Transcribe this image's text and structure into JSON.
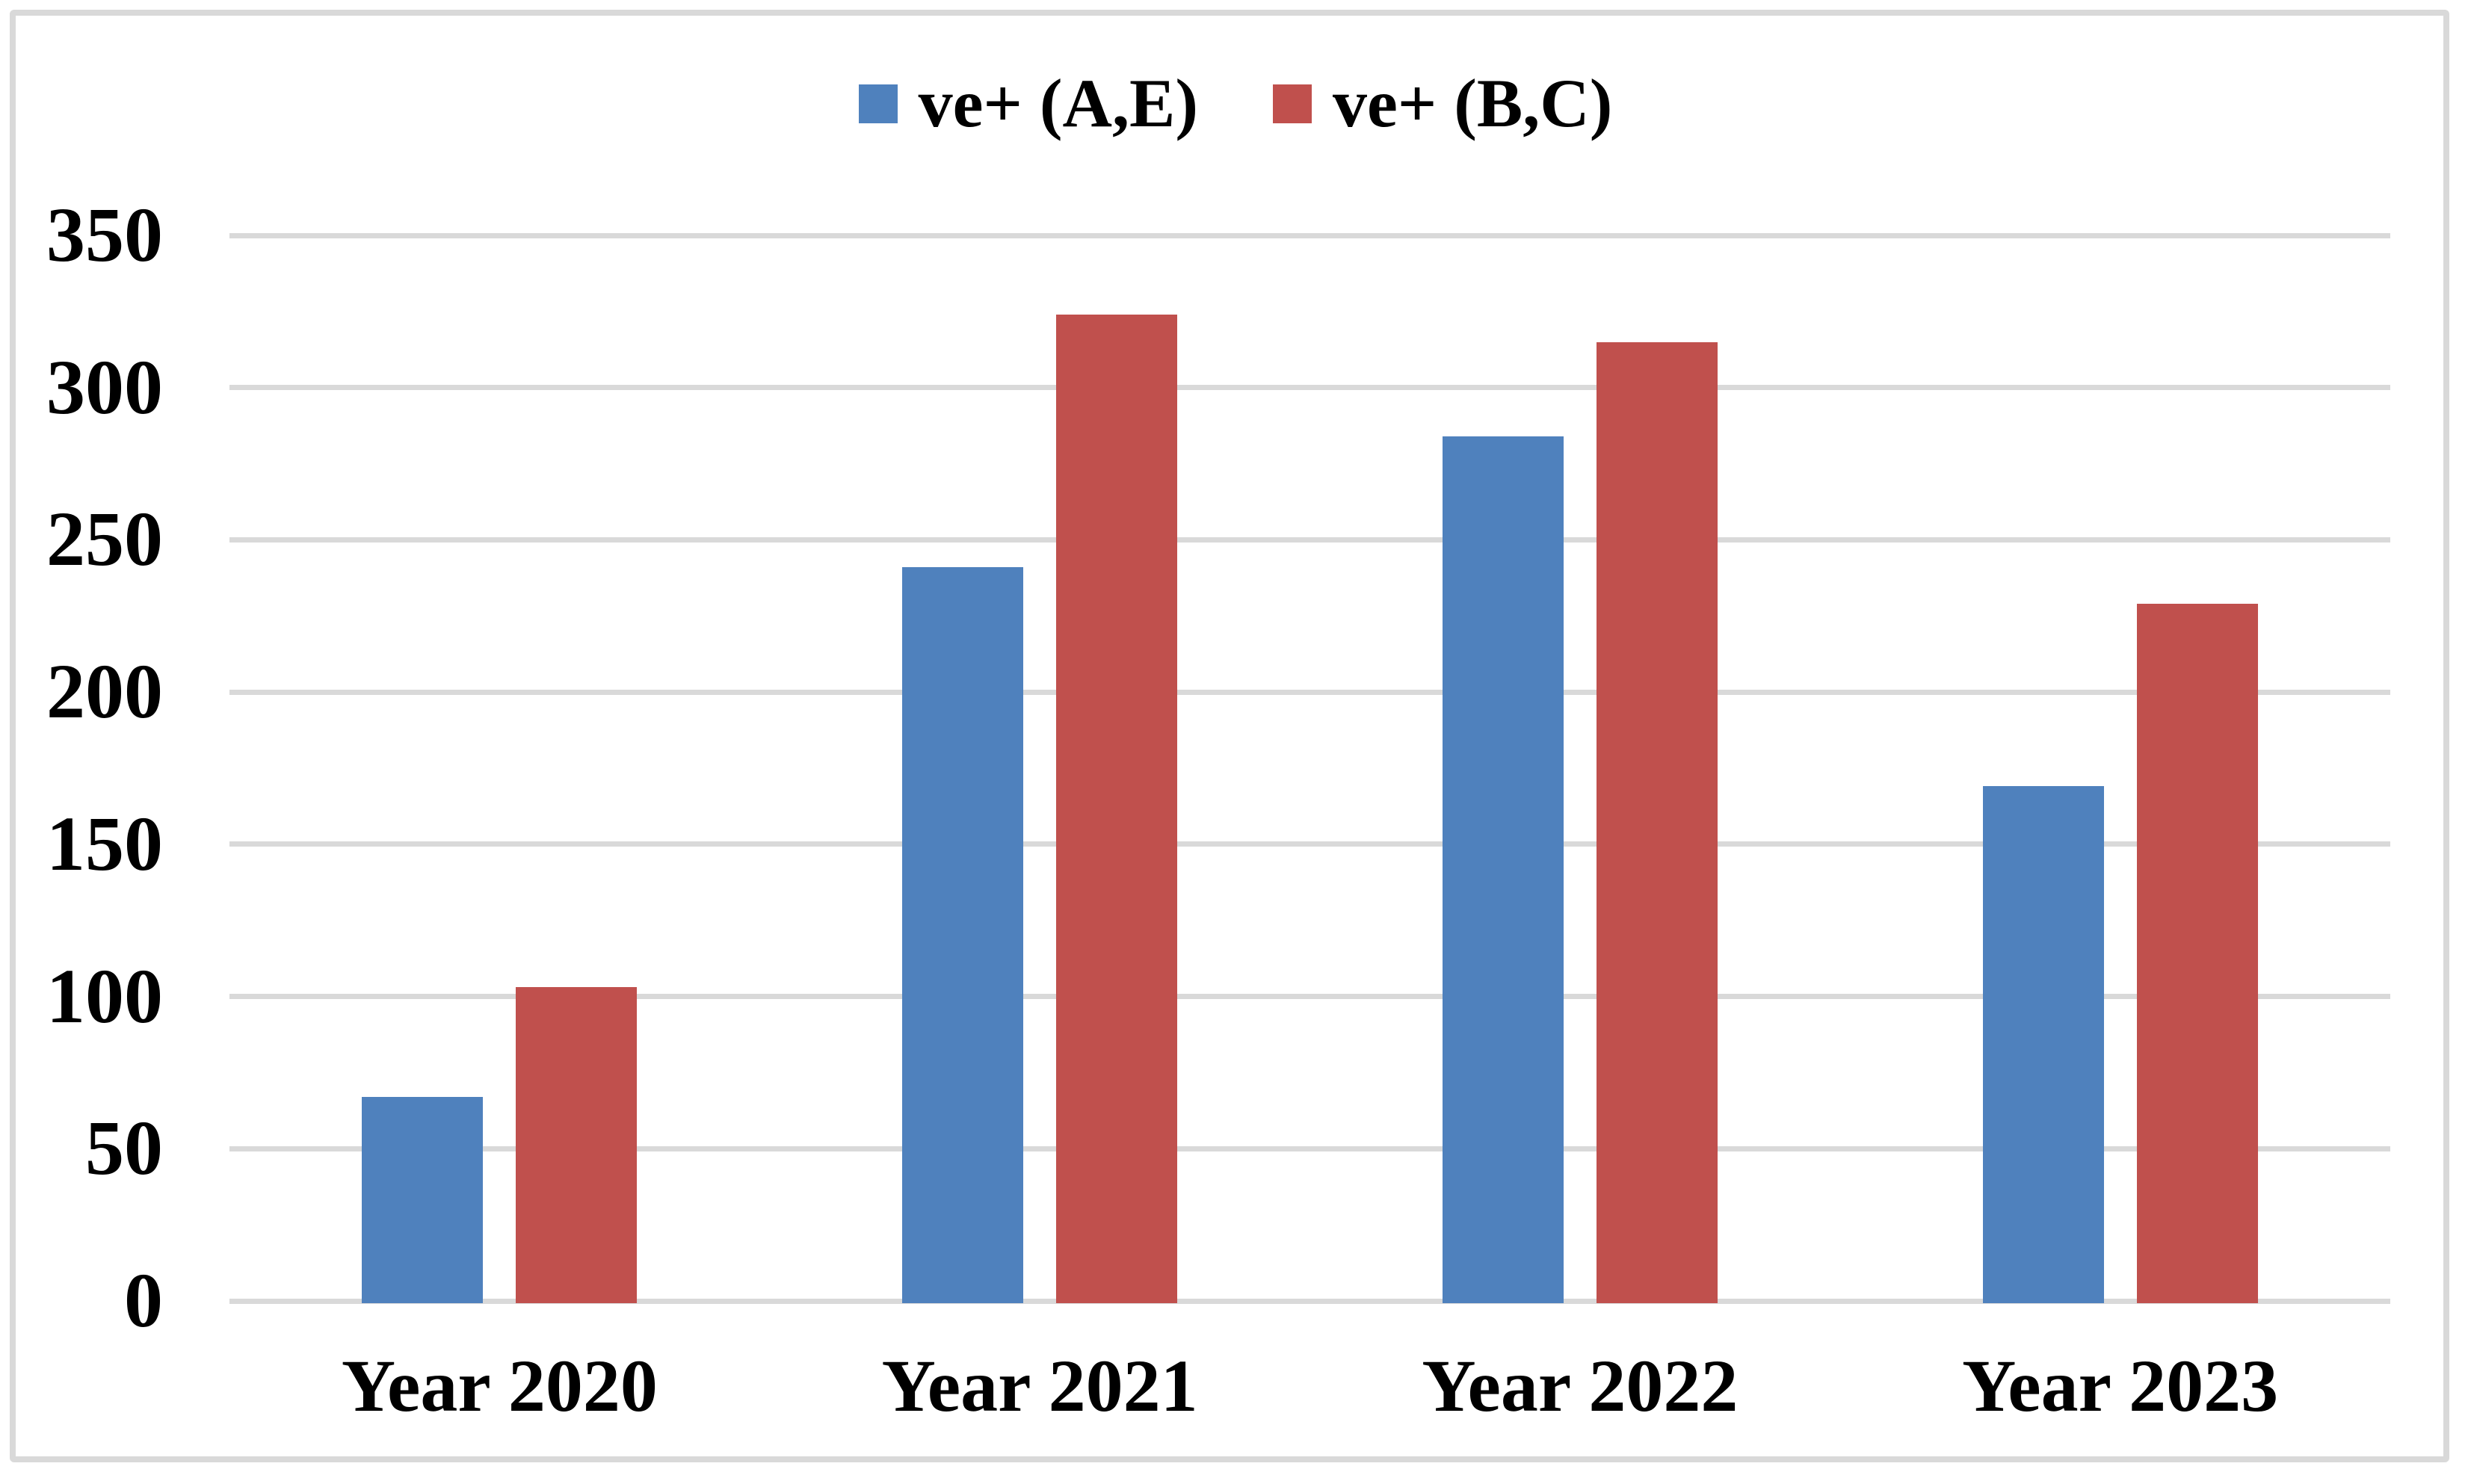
{
  "chart_data": {
    "type": "bar",
    "title": "",
    "categories": [
      "Year 2020",
      "Year 2021",
      "Year 2022",
      "Year 2023"
    ],
    "series": [
      {
        "name": "ve+ (A,E)",
        "color": "#4F81BD",
        "values": [
          67,
          241,
          284,
          169
        ]
      },
      {
        "name": "ve+ (B,C)",
        "color": "#C0504D",
        "values": [
          103,
          324,
          315,
          229
        ]
      }
    ],
    "ylim": [
      0,
      350
    ],
    "yticks": [
      0,
      50,
      100,
      150,
      200,
      250,
      300,
      350
    ],
    "grid": true,
    "legend_position": "top-center",
    "gridline_color": "#D9D9D9",
    "axis_color": "#D9D9D9",
    "background_color": "#FFFFFF",
    "border_color": "#D9D9D9"
  }
}
